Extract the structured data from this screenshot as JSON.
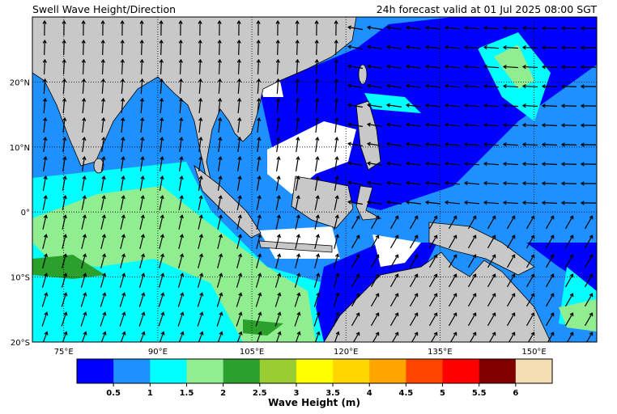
{
  "header": {
    "title": "Swell Wave Height/Direction",
    "subtitle": "24h forecast valid at 01 Jul 2025 08:00 SGT"
  },
  "map": {
    "lon_range": [
      70,
      160
    ],
    "lat_range": [
      -20,
      30
    ],
    "lon_ticks": [
      {
        "value": 75,
        "label": "75°E"
      },
      {
        "value": 90,
        "label": "90°E"
      },
      {
        "value": 105,
        "label": "105°E"
      },
      {
        "value": 120,
        "label": "120°E"
      },
      {
        "value": 135,
        "label": "135°E"
      },
      {
        "value": 150,
        "label": "150°E"
      }
    ],
    "lat_ticks": [
      {
        "value": 20,
        "label": "20°N"
      },
      {
        "value": 10,
        "label": "10°N"
      },
      {
        "value": 0,
        "label": "0°"
      },
      {
        "value": -10,
        "label": "10°S"
      },
      {
        "value": -20,
        "label": "20°S"
      }
    ]
  },
  "colorbar": {
    "label": "Wave Height (m)",
    "ticks": [
      0.5,
      1,
      1.5,
      2,
      2.5,
      3,
      3.5,
      4,
      4.5,
      5,
      5.5,
      6
    ],
    "colors": [
      "#0000ff",
      "#1e90ff",
      "#00ffff",
      "#90ee90",
      "#2ca02c",
      "#9acd32",
      "#ffff00",
      "#ffd700",
      "#ffa500",
      "#ff4500",
      "#ff0000",
      "#800000",
      "#f5deb3"
    ]
  }
}
